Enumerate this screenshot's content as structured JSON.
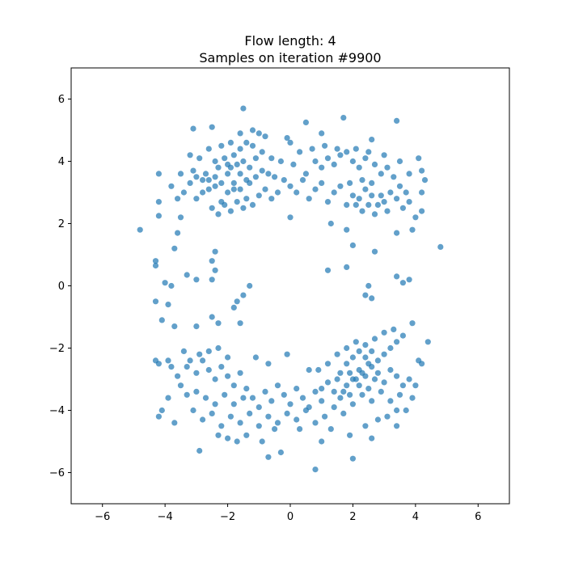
{
  "chart_data": {
    "type": "scatter",
    "title": "Flow length: 4",
    "subtitle": "Samples on iteration #9900",
    "xlabel": "",
    "ylabel": "",
    "xlim": [
      -7,
      7
    ],
    "ylim": [
      -7,
      7
    ],
    "xticks": [
      -6,
      -4,
      -2,
      0,
      2,
      4,
      6
    ],
    "yticks": [
      -6,
      -4,
      -2,
      0,
      2,
      4,
      6
    ],
    "xtick_labels": [
      "−6",
      "−4",
      "−2",
      "0",
      "2",
      "4",
      "6"
    ],
    "ytick_labels": [
      "−6",
      "−4",
      "−2",
      "0",
      "2",
      "4",
      "6"
    ],
    "grid": false,
    "marker_color": "#1f77b4",
    "marker_alpha": 0.7,
    "points": [
      [
        -4.8,
        1.8
      ],
      [
        4.8,
        1.25
      ],
      [
        -4.3,
        0.8
      ],
      [
        -4.3,
        0.65
      ],
      [
        -4.0,
        0.1
      ],
      [
        -3.9,
        -0.6
      ],
      [
        -4.3,
        -0.5
      ],
      [
        -3.8,
        0.0
      ],
      [
        -3.3,
        0.35
      ],
      [
        -3.0,
        0.2
      ],
      [
        -2.5,
        0.2
      ],
      [
        -2.4,
        0.5
      ],
      [
        -2.5,
        0.8
      ],
      [
        -2.4,
        1.1
      ],
      [
        -4.2,
        2.7
      ],
      [
        -4.2,
        2.25
      ],
      [
        -4.2,
        3.6
      ],
      [
        -3.5,
        2.2
      ],
      [
        -3.6,
        1.7
      ],
      [
        -3.7,
        1.2
      ],
      [
        -1.5,
        5.7
      ],
      [
        -1.2,
        5.0
      ],
      [
        0.5,
        5.25
      ],
      [
        1.7,
        5.4
      ],
      [
        3.4,
        5.3
      ],
      [
        -2.5,
        5.1
      ],
      [
        -3.1,
        5.05
      ],
      [
        -1.6,
        4.9
      ],
      [
        -1.0,
        4.9
      ],
      [
        -0.8,
        4.8
      ],
      [
        -0.1,
        4.75
      ],
      [
        1.0,
        4.9
      ],
      [
        2.6,
        4.7
      ],
      [
        4.1,
        4.1
      ],
      [
        4.2,
        3.7
      ],
      [
        4.3,
        3.4
      ],
      [
        4.2,
        3.0
      ],
      [
        4.2,
        2.4
      ],
      [
        3.9,
        1.8
      ],
      [
        4.0,
        2.2
      ],
      [
        3.4,
        1.7
      ],
      [
        2.7,
        1.1
      ],
      [
        2.0,
        1.3
      ],
      [
        1.8,
        1.8
      ],
      [
        1.3,
        2.0
      ],
      [
        1.2,
        0.5
      ],
      [
        1.8,
        0.6
      ],
      [
        2.5,
        0.0
      ],
      [
        2.6,
        -0.4
      ],
      [
        2.4,
        -0.3
      ],
      [
        3.4,
        0.3
      ],
      [
        3.6,
        0.1
      ],
      [
        3.8,
        0.2
      ],
      [
        0.0,
        2.2
      ],
      [
        -1.3,
        0.0
      ],
      [
        -1.5,
        -0.3
      ],
      [
        -1.7,
        -0.5
      ],
      [
        -1.8,
        -0.7
      ],
      [
        -1.6,
        -1.2
      ],
      [
        -2.3,
        -1.2
      ],
      [
        -2.5,
        -1.0
      ],
      [
        -3.0,
        -1.3
      ],
      [
        -3.7,
        -1.3
      ],
      [
        -4.1,
        -1.1
      ],
      [
        -4.3,
        -2.4
      ],
      [
        -4.2,
        -2.5
      ],
      [
        -3.9,
        -2.4
      ],
      [
        3.9,
        -1.2
      ],
      [
        4.1,
        -2.4
      ],
      [
        4.4,
        -1.8
      ],
      [
        -4.2,
        -4.2
      ],
      [
        -2.9,
        -5.3
      ],
      [
        0.8,
        -5.9
      ],
      [
        2.0,
        -5.55
      ],
      [
        -0.7,
        -5.5
      ],
      [
        -0.3,
        -5.35
      ],
      [
        1.0,
        -5.0
      ],
      [
        2.6,
        -4.9
      ],
      [
        3.4,
        -4.5
      ],
      [
        3.7,
        -4.0
      ],
      [
        3.9,
        -3.6
      ],
      [
        4.0,
        -3.2
      ],
      [
        4.2,
        -2.5
      ],
      [
        -3.2,
        4.2
      ],
      [
        -2.9,
        4.1
      ],
      [
        -2.4,
        4.0
      ],
      [
        -2.3,
        3.8
      ],
      [
        -2.0,
        3.9
      ],
      [
        -1.8,
        4.2
      ],
      [
        -1.6,
        4.4
      ],
      [
        -1.5,
        4.0
      ],
      [
        -1.3,
        3.8
      ],
      [
        -1.1,
        4.1
      ],
      [
        -0.9,
        4.3
      ],
      [
        -0.7,
        3.6
      ],
      [
        -0.5,
        3.5
      ],
      [
        -0.3,
        4.0
      ],
      [
        0.1,
        3.9
      ],
      [
        0.3,
        4.3
      ],
      [
        0.5,
        3.6
      ],
      [
        0.8,
        4.0
      ],
      [
        1.0,
        3.8
      ],
      [
        1.2,
        4.1
      ],
      [
        1.4,
        3.9
      ],
      [
        1.6,
        4.2
      ],
      [
        1.8,
        4.3
      ],
      [
        2.0,
        4.0
      ],
      [
        2.2,
        3.8
      ],
      [
        2.4,
        4.1
      ],
      [
        2.7,
        3.9
      ],
      [
        2.9,
        3.6
      ],
      [
        3.1,
        3.8
      ],
      [
        3.3,
        3.5
      ],
      [
        3.5,
        3.2
      ],
      [
        3.7,
        3.0
      ],
      [
        3.8,
        2.7
      ],
      [
        3.6,
        2.5
      ],
      [
        3.4,
        2.8
      ],
      [
        3.2,
        3.0
      ],
      [
        3.0,
        2.7
      ],
      [
        2.8,
        2.6
      ],
      [
        2.6,
        2.9
      ],
      [
        2.4,
        3.1
      ],
      [
        2.2,
        2.8
      ],
      [
        2.0,
        2.9
      ],
      [
        1.8,
        2.6
      ],
      [
        1.6,
        3.2
      ],
      [
        1.4,
        3.0
      ],
      [
        1.2,
        2.7
      ],
      [
        1.0,
        3.3
      ],
      [
        0.8,
        3.1
      ],
      [
        0.6,
        2.8
      ],
      [
        0.4,
        3.4
      ],
      [
        0.2,
        3.0
      ],
      [
        0.0,
        3.2
      ],
      [
        -0.2,
        3.4
      ],
      [
        -0.4,
        3.0
      ],
      [
        -0.6,
        2.8
      ],
      [
        -0.8,
        3.1
      ],
      [
        -1.0,
        2.9
      ],
      [
        -1.2,
        2.6
      ],
      [
        -1.4,
        2.8
      ],
      [
        -1.6,
        3.1
      ],
      [
        -1.8,
        3.3
      ],
      [
        -2.0,
        3.0
      ],
      [
        -2.2,
        2.7
      ],
      [
        -2.4,
        3.2
      ],
      [
        -2.6,
        3.4
      ],
      [
        -2.8,
        3.0
      ],
      [
        -3.0,
        2.8
      ],
      [
        -3.2,
        3.3
      ],
      [
        -3.4,
        3.0
      ],
      [
        -3.6,
        2.8
      ],
      [
        -3.8,
        3.2
      ],
      [
        -3.5,
        3.6
      ],
      [
        -3.1,
        3.7
      ],
      [
        -2.7,
        3.6
      ],
      [
        -2.5,
        2.5
      ],
      [
        -2.3,
        2.3
      ],
      [
        -2.1,
        2.6
      ],
      [
        -1.9,
        2.4
      ],
      [
        -1.7,
        2.7
      ],
      [
        -1.5,
        2.5
      ],
      [
        -1.3,
        3.3
      ],
      [
        -1.1,
        3.5
      ],
      [
        -0.9,
        3.7
      ],
      [
        -2.6,
        4.4
      ],
      [
        -2.2,
        4.5
      ],
      [
        -1.9,
        4.6
      ],
      [
        -1.4,
        4.6
      ],
      [
        -1.2,
        4.5
      ],
      [
        -0.6,
        4.1
      ],
      [
        0.0,
        4.6
      ],
      [
        0.7,
        4.4
      ],
      [
        1.1,
        4.5
      ],
      [
        1.5,
        4.4
      ],
      [
        2.1,
        4.4
      ],
      [
        2.5,
        4.3
      ],
      [
        3.0,
        4.2
      ],
      [
        3.5,
        4.0
      ],
      [
        3.8,
        3.6
      ],
      [
        -2.4,
        3.5
      ],
      [
        -2.2,
        3.3
      ],
      [
        -2.0,
        3.6
      ],
      [
        -1.8,
        3.1
      ],
      [
        -1.6,
        3.6
      ],
      [
        -1.4,
        3.4
      ],
      [
        -2.6,
        3.1
      ],
      [
        -2.8,
        3.4
      ],
      [
        -3.0,
        3.5
      ],
      [
        -2.1,
        4.1
      ],
      [
        -1.9,
        3.8
      ],
      [
        -1.7,
        3.9
      ],
      [
        2.3,
        2.4
      ],
      [
        2.5,
        2.6
      ],
      [
        2.7,
        2.3
      ],
      [
        2.9,
        2.9
      ],
      [
        3.1,
        2.4
      ],
      [
        2.1,
        2.6
      ],
      [
        1.9,
        3.3
      ],
      [
        2.3,
        3.4
      ],
      [
        2.6,
        3.3
      ],
      [
        -3.6,
        -2.9
      ],
      [
        -3.3,
        -2.6
      ],
      [
        -3.0,
        -2.8
      ],
      [
        -2.8,
        -2.4
      ],
      [
        -2.6,
        -2.7
      ],
      [
        -2.4,
        -3.0
      ],
      [
        -2.2,
        -2.6
      ],
      [
        -2.0,
        -2.9
      ],
      [
        -1.8,
        -3.2
      ],
      [
        -1.6,
        -2.8
      ],
      [
        -1.4,
        -3.3
      ],
      [
        -1.2,
        -3.6
      ],
      [
        -1.0,
        -3.9
      ],
      [
        -0.8,
        -3.4
      ],
      [
        -0.6,
        -3.7
      ],
      [
        -0.4,
        -3.2
      ],
      [
        -0.2,
        -3.5
      ],
      [
        0.0,
        -3.8
      ],
      [
        0.2,
        -3.3
      ],
      [
        0.4,
        -3.6
      ],
      [
        0.6,
        -3.9
      ],
      [
        0.8,
        -3.4
      ],
      [
        1.0,
        -3.7
      ],
      [
        1.2,
        -3.1
      ],
      [
        1.4,
        -3.4
      ],
      [
        1.6,
        -3.6
      ],
      [
        1.8,
        -3.2
      ],
      [
        2.0,
        -3.0
      ],
      [
        2.2,
        -2.7
      ],
      [
        2.4,
        -2.9
      ],
      [
        2.6,
        -2.6
      ],
      [
        2.8,
        -2.8
      ],
      [
        3.0,
        -3.1
      ],
      [
        3.2,
        -2.7
      ],
      [
        3.4,
        -2.9
      ],
      [
        3.6,
        -3.2
      ],
      [
        3.8,
        -3.0
      ],
      [
        3.5,
        -3.5
      ],
      [
        3.2,
        -3.7
      ],
      [
        2.9,
        -3.4
      ],
      [
        2.6,
        -3.7
      ],
      [
        2.3,
        -3.5
      ],
      [
        2.0,
        -3.8
      ],
      [
        1.7,
        -4.1
      ],
      [
        1.4,
        -3.9
      ],
      [
        1.1,
        -4.2
      ],
      [
        0.8,
        -4.4
      ],
      [
        0.5,
        -4.0
      ],
      [
        0.2,
        -4.3
      ],
      [
        -0.1,
        -4.1
      ],
      [
        -0.4,
        -4.4
      ],
      [
        -0.7,
        -4.2
      ],
      [
        -1.0,
        -4.5
      ],
      [
        -1.3,
        -4.1
      ],
      [
        -1.6,
        -4.4
      ],
      [
        -1.9,
        -4.2
      ],
      [
        -2.2,
        -4.5
      ],
      [
        -2.5,
        -4.1
      ],
      [
        -2.8,
        -4.3
      ],
      [
        -3.1,
        -4.0
      ],
      [
        -3.3,
        -3.5
      ],
      [
        -3.5,
        -3.2
      ],
      [
        -3.0,
        -3.4
      ],
      [
        -2.7,
        -3.6
      ],
      [
        -2.4,
        -3.8
      ],
      [
        -2.1,
        -3.5
      ],
      [
        -1.8,
        -3.8
      ],
      [
        -1.5,
        -3.6
      ],
      [
        -2.3,
        -4.8
      ],
      [
        -2.0,
        -4.9
      ],
      [
        -1.7,
        -5.0
      ],
      [
        -1.4,
        -4.8
      ],
      [
        -0.9,
        -5.0
      ],
      [
        -0.5,
        -4.6
      ],
      [
        0.3,
        -4.6
      ],
      [
        1.3,
        -4.6
      ],
      [
        1.9,
        -4.8
      ],
      [
        2.4,
        -4.5
      ],
      [
        2.8,
        -4.3
      ],
      [
        3.1,
        -4.2
      ],
      [
        3.4,
        -4.0
      ],
      [
        1.6,
        -2.8
      ],
      [
        1.8,
        -2.5
      ],
      [
        2.0,
        -2.3
      ],
      [
        2.2,
        -2.1
      ],
      [
        2.4,
        -2.3
      ],
      [
        2.6,
        -2.1
      ],
      [
        2.8,
        -2.4
      ],
      [
        3.0,
        -2.2
      ],
      [
        3.2,
        -2.0
      ],
      [
        3.4,
        -1.8
      ],
      [
        3.6,
        -1.6
      ],
      [
        3.3,
        -1.4
      ],
      [
        3.0,
        -1.5
      ],
      [
        2.7,
        -1.7
      ],
      [
        2.4,
        -1.9
      ],
      [
        2.1,
        -1.8
      ],
      [
        1.8,
        -2.0
      ],
      [
        1.5,
        -2.2
      ],
      [
        1.2,
        -2.5
      ],
      [
        0.9,
        -2.7
      ],
      [
        1.0,
        -3.3
      ],
      [
        1.5,
        -3.0
      ],
      [
        1.9,
        -3.5
      ],
      [
        2.2,
        -3.2
      ],
      [
        2.5,
        -3.3
      ],
      [
        2.7,
        -3.0
      ],
      [
        1.7,
        -3.4
      ],
      [
        1.9,
        -2.8
      ],
      [
        2.1,
        -3.0
      ],
      [
        2.3,
        -2.8
      ],
      [
        2.5,
        -2.5
      ],
      [
        -2.9,
        -2.2
      ],
      [
        -2.6,
        -2.1
      ],
      [
        -2.3,
        -2.0
      ],
      [
        -2.0,
        -2.3
      ],
      [
        -3.2,
        -2.4
      ],
      [
        -3.4,
        -2.1
      ],
      [
        -3.8,
        -2.6
      ],
      [
        -3.9,
        -3.6
      ],
      [
        -4.1,
        -4.0
      ],
      [
        -3.7,
        -4.4
      ],
      [
        -0.7,
        -2.5
      ],
      [
        -0.1,
        -2.2
      ],
      [
        0.6,
        -2.7
      ],
      [
        -1.1,
        -2.3
      ]
    ]
  }
}
